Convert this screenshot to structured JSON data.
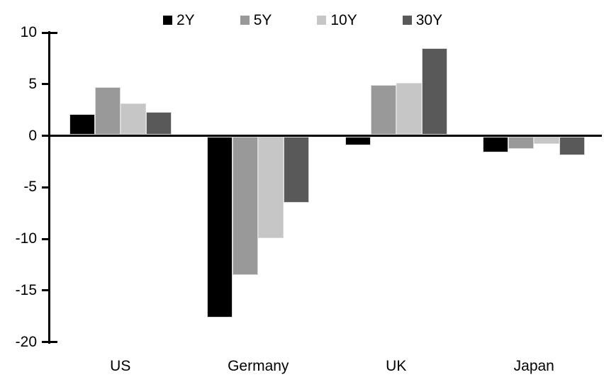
{
  "chart_data": {
    "type": "bar",
    "title": "",
    "categories": [
      "US",
      "Germany",
      "UK",
      "Japan"
    ],
    "series": [
      {
        "name": "2Y",
        "color": "#000000",
        "values": [
          2.0,
          -17.5,
          -0.8,
          -1.5
        ]
      },
      {
        "name": "5Y",
        "color": "#999999",
        "values": [
          4.6,
          -13.4,
          4.8,
          -1.2
        ]
      },
      {
        "name": "10Y",
        "color": "#c6c6c6",
        "values": [
          3.0,
          -9.8,
          5.0,
          -0.7
        ]
      },
      {
        "name": "30Y",
        "color": "#595959",
        "values": [
          2.2,
          -6.4,
          8.4,
          -1.8
        ]
      }
    ],
    "yticks": [
      10,
      5,
      0,
      -5,
      -10,
      -15,
      -20
    ],
    "ylim": [
      -20,
      10
    ],
    "xlabel": "",
    "ylabel": "",
    "legend_position": "top-center",
    "grid": false,
    "axis_color": "#000000",
    "background_color": "#ffffff"
  }
}
